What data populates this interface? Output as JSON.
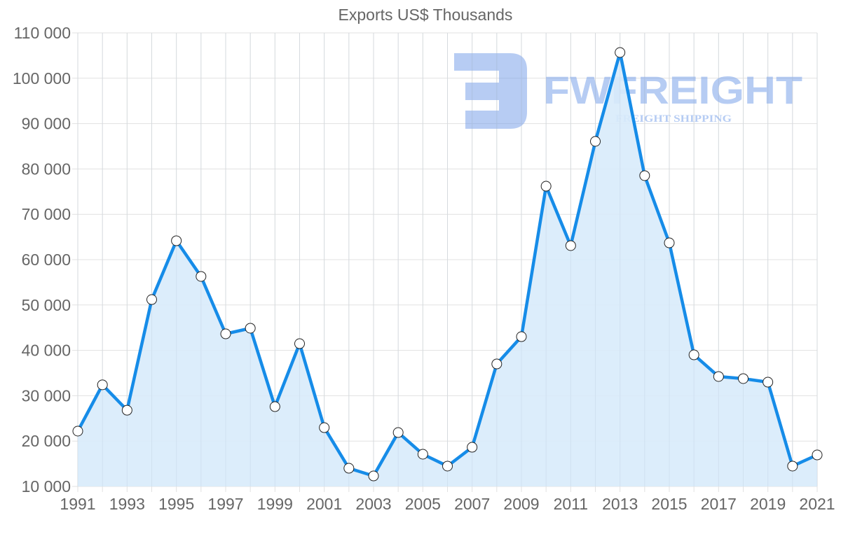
{
  "chart_data": {
    "type": "area",
    "title": "Exports US$ Thousands",
    "xlabel": "",
    "ylabel": "",
    "x": [
      1991,
      1992,
      1993,
      1994,
      1995,
      1996,
      1997,
      1998,
      1999,
      2000,
      2001,
      2002,
      2003,
      2004,
      2005,
      2006,
      2007,
      2008,
      2009,
      2010,
      2011,
      2012,
      2013,
      2014,
      2015,
      2016,
      2017,
      2018,
      2019,
      2020,
      2021
    ],
    "series": [
      {
        "name": "Exports US$ Thousands",
        "values": [
          22190,
          32400,
          26800,
          51200,
          64170,
          56300,
          43640,
          44880,
          27590,
          41480,
          22960,
          14010,
          12310,
          21880,
          17100,
          14480,
          18640,
          37000,
          43020,
          76200,
          63090,
          86080,
          105680,
          78520,
          63700,
          39010,
          34230,
          33770,
          32990,
          14480,
          16940
        ]
      }
    ],
    "ylim": [
      10000,
      110000
    ],
    "yticks": [
      "110 000",
      "100 000",
      "90 000",
      "80 000",
      "70 000",
      "60 000",
      "50 000",
      "40 000",
      "30 000",
      "20 000",
      "10 000"
    ],
    "xticks": [
      "1991",
      "1993",
      "1995",
      "1997",
      "1999",
      "2001",
      "2003",
      "2005",
      "2007",
      "2009",
      "2011",
      "2013",
      "2015",
      "2017",
      "2019",
      "2021"
    ],
    "grid": true,
    "legend": "none",
    "colors": {
      "line": "#168ce8",
      "fill": "#d8ebfb",
      "grid": "#e1e1e1",
      "text": "#666666"
    }
  },
  "watermark": {
    "brand": "FWFREIGHT",
    "tagline": "FREIGHT SHIPPING",
    "color": "#7ba3ea"
  }
}
